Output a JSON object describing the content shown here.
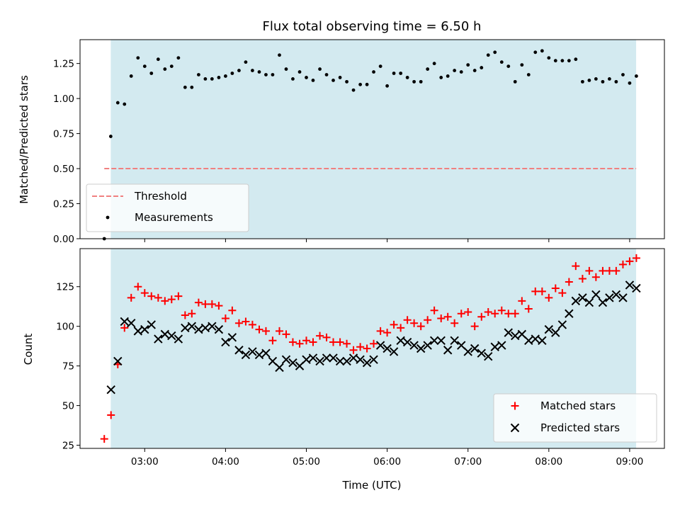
{
  "chart_data": [
    {
      "type": "scatter",
      "title": "Flux total observing time = 6.50 h",
      "xlabel": "",
      "ylabel": "Matched/Predicted stars",
      "ylim": [
        0,
        1.42
      ],
      "yticks": [
        "0.00",
        "0.25",
        "0.50",
        "0.75",
        "1.00",
        "1.25"
      ],
      "shaded_span": {
        "start": 2.58,
        "end": 9.08,
        "color": "#d3eaf0"
      },
      "legend_position": "lower-left",
      "threshold": {
        "name": "Threshold",
        "value": 0.5,
        "x_start": 2.5,
        "x_end": 9.08,
        "color": "#f08080"
      },
      "series": [
        {
          "name": "Measurements",
          "marker": "dot",
          "color": "#000000",
          "x": [
            2.5,
            2.58,
            2.667,
            2.75,
            2.833,
            2.917,
            3.0,
            3.083,
            3.167,
            3.25,
            3.333,
            3.417,
            3.5,
            3.583,
            3.667,
            3.75,
            3.833,
            3.917,
            4.0,
            4.083,
            4.167,
            4.25,
            4.333,
            4.417,
            4.5,
            4.583,
            4.667,
            4.75,
            4.833,
            4.917,
            5.0,
            5.083,
            5.167,
            5.25,
            5.333,
            5.417,
            5.5,
            5.583,
            5.667,
            5.75,
            5.833,
            5.917,
            6.0,
            6.083,
            6.167,
            6.25,
            6.333,
            6.417,
            6.5,
            6.583,
            6.667,
            6.75,
            6.833,
            6.917,
            7.0,
            7.083,
            7.167,
            7.25,
            7.333,
            7.417,
            7.5,
            7.583,
            7.667,
            7.75,
            7.833,
            7.917,
            8.0,
            8.083,
            8.167,
            8.25,
            8.333,
            8.417,
            8.5,
            8.583,
            8.667,
            8.75,
            8.833,
            8.917,
            9.0,
            9.083
          ],
          "y": [
            0.0,
            0.73,
            0.97,
            0.96,
            1.16,
            1.29,
            1.23,
            1.18,
            1.28,
            1.21,
            1.23,
            1.29,
            1.08,
            1.08,
            1.17,
            1.14,
            1.14,
            1.15,
            1.16,
            1.18,
            1.2,
            1.26,
            1.2,
            1.19,
            1.17,
            1.17,
            1.31,
            1.21,
            1.14,
            1.19,
            1.15,
            1.13,
            1.21,
            1.17,
            1.13,
            1.15,
            1.12,
            1.06,
            1.1,
            1.1,
            1.19,
            1.23,
            1.09,
            1.18,
            1.18,
            1.15,
            1.12,
            1.12,
            1.21,
            1.25,
            1.15,
            1.16,
            1.2,
            1.19,
            1.24,
            1.2,
            1.22,
            1.31,
            1.33,
            1.26,
            1.23,
            1.12,
            1.24,
            1.17,
            1.33,
            1.34,
            1.29,
            1.27,
            1.27,
            1.27,
            1.28,
            1.12,
            1.13,
            1.14,
            1.12,
            1.14,
            1.12,
            1.17,
            1.11,
            1.16
          ]
        }
      ]
    },
    {
      "type": "scatter",
      "title": "",
      "xlabel": "Time (UTC)",
      "ylabel": "Count",
      "xlim": [
        2.2,
        9.43
      ],
      "xticks": [
        {
          "value": 3,
          "label": "03:00"
        },
        {
          "value": 4,
          "label": "04:00"
        },
        {
          "value": 5,
          "label": "05:00"
        },
        {
          "value": 6,
          "label": "06:00"
        },
        {
          "value": 7,
          "label": "07:00"
        },
        {
          "value": 8,
          "label": "08:00"
        },
        {
          "value": 9,
          "label": "09:00"
        }
      ],
      "ylim": [
        23,
        149
      ],
      "yticks": [
        {
          "value": 25,
          "label": "25"
        },
        {
          "value": 50,
          "label": "50"
        },
        {
          "value": 75,
          "label": "75"
        },
        {
          "value": 100,
          "label": "100"
        },
        {
          "value": 125,
          "label": "125"
        }
      ],
      "shaded_span": {
        "start": 2.58,
        "end": 9.08,
        "color": "#d3eaf0"
      },
      "legend_position": "lower-right",
      "series": [
        {
          "name": "Matched stars",
          "marker": "plus",
          "color": "#ff0000",
          "x": [
            2.5,
            2.583,
            2.667,
            2.75,
            2.833,
            2.917,
            3.0,
            3.083,
            3.167,
            3.25,
            3.333,
            3.417,
            3.5,
            3.583,
            3.667,
            3.75,
            3.833,
            3.917,
            4.0,
            4.083,
            4.167,
            4.25,
            4.333,
            4.417,
            4.5,
            4.583,
            4.667,
            4.75,
            4.833,
            4.917,
            5.0,
            5.083,
            5.167,
            5.25,
            5.333,
            5.417,
            5.5,
            5.583,
            5.667,
            5.75,
            5.833,
            5.917,
            6.0,
            6.083,
            6.167,
            6.25,
            6.333,
            6.417,
            6.5,
            6.583,
            6.667,
            6.75,
            6.833,
            6.917,
            7.0,
            7.083,
            7.167,
            7.25,
            7.333,
            7.417,
            7.5,
            7.583,
            7.667,
            7.75,
            7.833,
            7.917,
            8.0,
            8.083,
            8.167,
            8.25,
            8.333,
            8.417,
            8.5,
            8.583,
            8.667,
            8.75,
            8.833,
            8.917,
            9.0,
            9.083
          ],
          "y": [
            29,
            44,
            76,
            99,
            118,
            125,
            121,
            119,
            118,
            116,
            117,
            119,
            107,
            108,
            115,
            114,
            114,
            113,
            105,
            110,
            102,
            103,
            101,
            98,
            97,
            91,
            97,
            95,
            90,
            89,
            91,
            90,
            94,
            93,
            90,
            90,
            89,
            85,
            87,
            86,
            89,
            97,
            96,
            101,
            99,
            104,
            102,
            100,
            104,
            110,
            105,
            106,
            102,
            108,
            109,
            100,
            106,
            109,
            108,
            110,
            108,
            108,
            116,
            111,
            122,
            122,
            118,
            124,
            121,
            128,
            138,
            130,
            135,
            131,
            135,
            135,
            135,
            139,
            141,
            143
          ]
        },
        {
          "name": "Predicted stars",
          "marker": "x",
          "color": "#000000",
          "x": [
            2.583,
            2.667,
            2.75,
            2.833,
            2.917,
            3.0,
            3.083,
            3.167,
            3.25,
            3.333,
            3.417,
            3.5,
            3.583,
            3.667,
            3.75,
            3.833,
            3.917,
            4.0,
            4.083,
            4.167,
            4.25,
            4.333,
            4.417,
            4.5,
            4.583,
            4.667,
            4.75,
            4.833,
            4.917,
            5.0,
            5.083,
            5.167,
            5.25,
            5.333,
            5.417,
            5.5,
            5.583,
            5.667,
            5.75,
            5.833,
            5.917,
            6.0,
            6.083,
            6.167,
            6.25,
            6.333,
            6.417,
            6.5,
            6.583,
            6.667,
            6.75,
            6.833,
            6.917,
            7.0,
            7.083,
            7.167,
            7.25,
            7.333,
            7.417,
            7.5,
            7.583,
            7.667,
            7.75,
            7.833,
            7.917,
            8.0,
            8.083,
            8.167,
            8.25,
            8.333,
            8.417,
            8.5,
            8.583,
            8.667,
            8.75,
            8.833,
            8.917,
            9.0,
            9.083
          ],
          "y": [
            60,
            78,
            103,
            102,
            97,
            98,
            101,
            92,
            95,
            94,
            92,
            99,
            100,
            98,
            99,
            100,
            98,
            90,
            93,
            85,
            82,
            84,
            82,
            83,
            78,
            74,
            79,
            77,
            75,
            79,
            80,
            78,
            80,
            80,
            78,
            78,
            80,
            79,
            77,
            79,
            88,
            86,
            84,
            91,
            90,
            88,
            86,
            88,
            91,
            91,
            85,
            91,
            88,
            84,
            86,
            83,
            81,
            87,
            88,
            96,
            94,
            95,
            91,
            92,
            91,
            98,
            96,
            101,
            108,
            116,
            118,
            115,
            120,
            115,
            118,
            120,
            118,
            126,
            124
          ]
        }
      ]
    }
  ]
}
